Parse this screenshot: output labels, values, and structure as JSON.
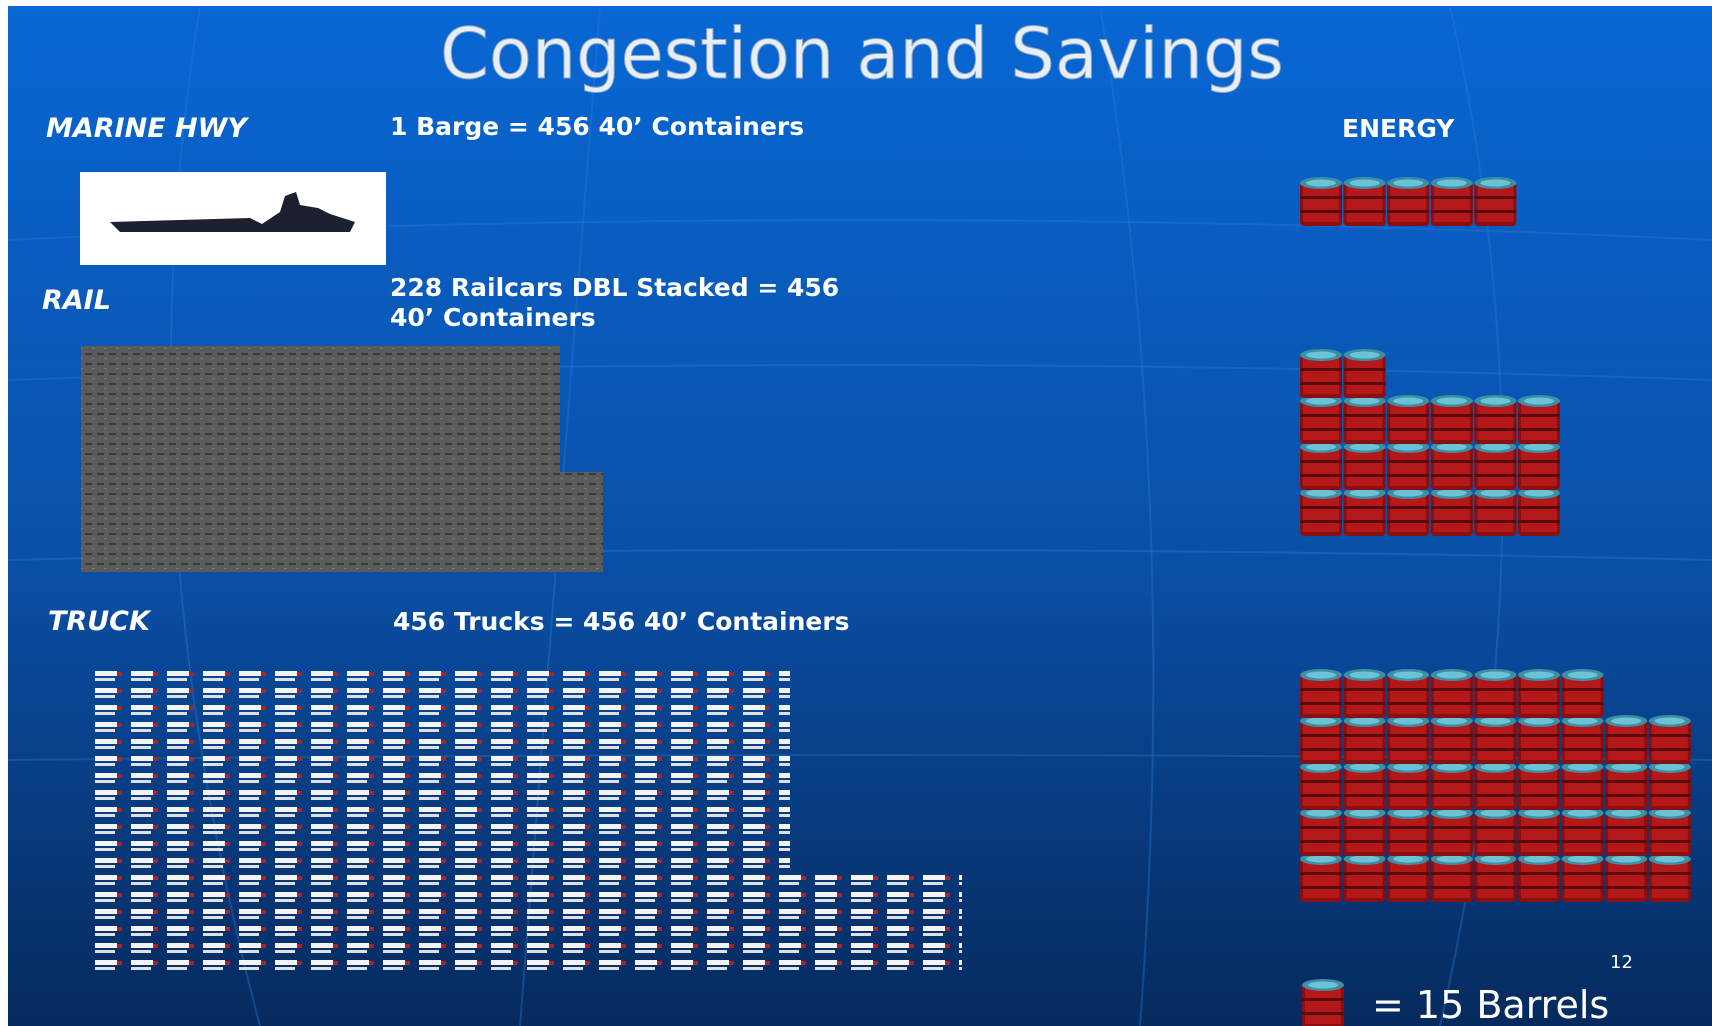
{
  "title": "Congestion and Savings",
  "energy_label": "ENERGY",
  "modes": [
    {
      "label": "MARINE HWY",
      "caption": [
        "1 Barge = 456 40’ Containers"
      ]
    },
    {
      "label": "RAIL",
      "caption": [
        "228 Railcars DBL Stacked = 456",
        "40’ Containers"
      ]
    },
    {
      "label": "TRUCK",
      "caption": [
        "456 Trucks = 456 40’ Containers"
      ]
    }
  ],
  "page_number": "12",
  "legend": "= 15 Barrels"
}
